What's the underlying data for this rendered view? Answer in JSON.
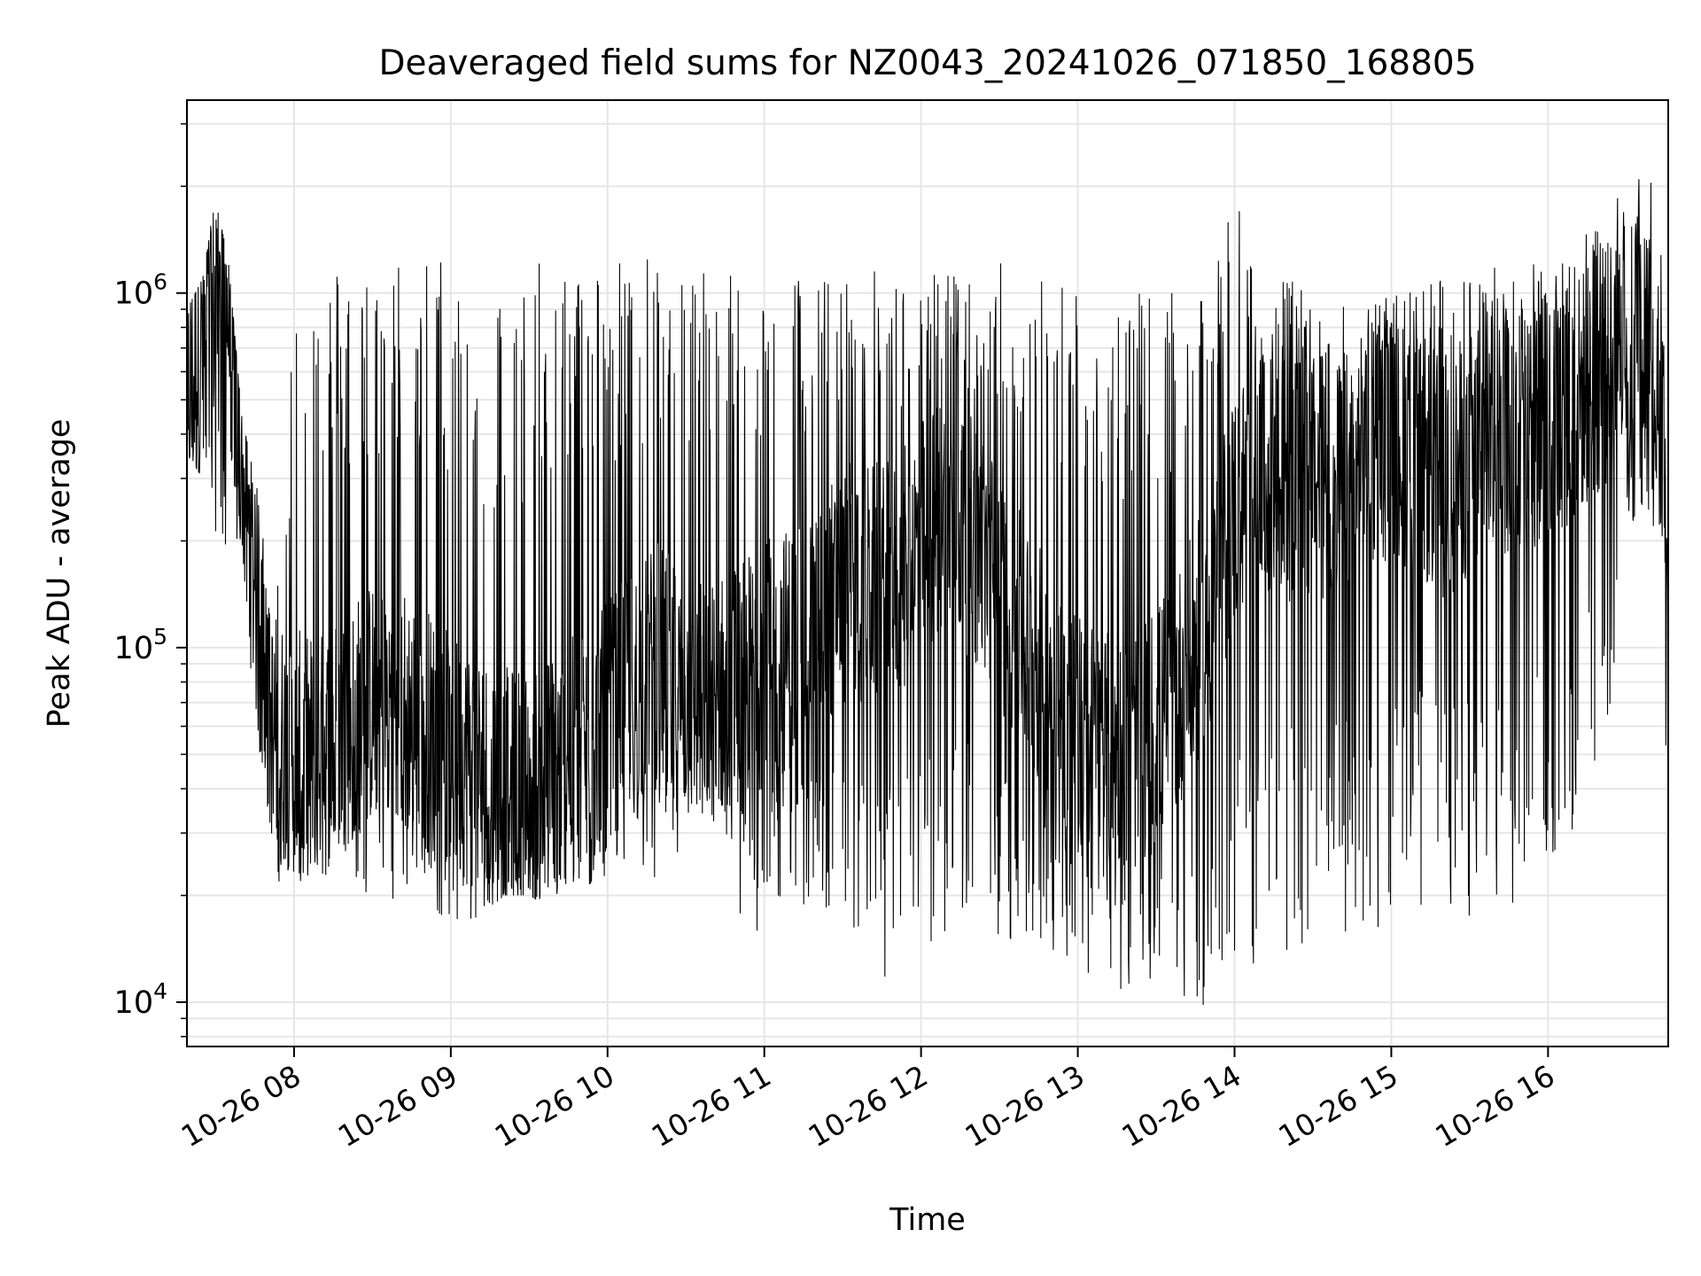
{
  "chart_data": {
    "type": "line",
    "title": "Deaveraged field sums for NZ0043_20241026_071850_168805",
    "xlabel": "Time",
    "ylabel": "Peak ADU - average",
    "yscale": "log",
    "ylim": [
      7500,
      3500000
    ],
    "xlim": [
      "2024-10-26 07:19",
      "2024-10-26 16:46"
    ],
    "grid": true,
    "line_color": "#000000",
    "x_ticks": [
      {
        "label": "10-26 08",
        "value": "2024-10-26 08:00"
      },
      {
        "label": "10-26 09",
        "value": "2024-10-26 09:00"
      },
      {
        "label": "10-26 10",
        "value": "2024-10-26 10:00"
      },
      {
        "label": "10-26 11",
        "value": "2024-10-26 11:00"
      },
      {
        "label": "10-26 12",
        "value": "2024-10-26 12:00"
      },
      {
        "label": "10-26 13",
        "value": "2024-10-26 13:00"
      },
      {
        "label": "10-26 14",
        "value": "2024-10-26 14:00"
      },
      {
        "label": "10-26 15",
        "value": "2024-10-26 15:00"
      },
      {
        "label": "10-26 16",
        "value": "2024-10-26 16:00"
      }
    ],
    "y_ticks": [
      {
        "base": "10",
        "exp": "4",
        "value": 10000
      },
      {
        "base": "10",
        "exp": "5",
        "value": 100000
      },
      {
        "base": "10",
        "exp": "6",
        "value": 1000000
      }
    ],
    "series": [
      {
        "x": [
          "2024-10-26 07:19",
          "2024-10-26 07:25",
          "2024-10-26 07:30",
          "2024-10-26 07:35",
          "2024-10-26 07:40",
          "2024-10-26 07:45",
          "2024-10-26 07:50",
          "2024-10-26 07:55",
          "2024-10-26 08:00",
          "2024-10-26 08:10",
          "2024-10-26 08:20",
          "2024-10-26 08:30",
          "2024-10-26 08:40",
          "2024-10-26 08:50",
          "2024-10-26 09:00",
          "2024-10-26 09:10",
          "2024-10-26 09:20",
          "2024-10-26 09:30",
          "2024-10-26 09:40",
          "2024-10-26 09:50",
          "2024-10-26 10:00",
          "2024-10-26 10:10",
          "2024-10-26 10:20",
          "2024-10-26 10:30",
          "2024-10-26 10:40",
          "2024-10-26 10:50",
          "2024-10-26 11:00",
          "2024-10-26 11:10",
          "2024-10-26 11:20",
          "2024-10-26 11:30",
          "2024-10-26 11:40",
          "2024-10-26 11:50",
          "2024-10-26 12:00",
          "2024-10-26 12:10",
          "2024-10-26 12:20",
          "2024-10-26 12:30",
          "2024-10-26 12:40",
          "2024-10-26 12:50",
          "2024-10-26 13:00",
          "2024-10-26 13:10",
          "2024-10-26 13:20",
          "2024-10-26 13:30",
          "2024-10-26 13:40",
          "2024-10-26 13:50",
          "2024-10-26 14:00",
          "2024-10-26 14:10",
          "2024-10-26 14:20",
          "2024-10-26 14:30",
          "2024-10-26 14:40",
          "2024-10-26 14:50",
          "2024-10-26 15:00",
          "2024-10-26 15:10",
          "2024-10-26 15:20",
          "2024-10-26 15:30",
          "2024-10-26 15:40",
          "2024-10-26 15:50",
          "2024-10-26 16:00",
          "2024-10-26 16:10",
          "2024-10-26 16:20",
          "2024-10-26 16:30",
          "2024-10-26 16:38",
          "2024-10-26 16:44",
          "2024-10-26 16:46"
        ],
        "baseline": [
          500000,
          700000,
          900000,
          900000,
          300000,
          150000,
          60000,
          55000,
          50000,
          50000,
          60000,
          70000,
          70000,
          60000,
          50000,
          45000,
          40000,
          40000,
          45000,
          50000,
          60000,
          80000,
          90000,
          70000,
          70000,
          80000,
          90000,
          100000,
          120000,
          150000,
          150000,
          150000,
          200000,
          250000,
          200000,
          150000,
          100000,
          80000,
          60000,
          50000,
          50000,
          60000,
          80000,
          120000,
          250000,
          300000,
          300000,
          300000,
          300000,
          350000,
          400000,
          350000,
          300000,
          350000,
          400000,
          400000,
          450000,
          500000,
          600000,
          700000,
          900000,
          400000,
          80000
        ],
        "max": [
          900000,
          1100000,
          1900000,
          1200000,
          450000,
          300000,
          200000,
          150000,
          1250000,
          1250000,
          1250000,
          1200000,
          1300000,
          1350000,
          1300000,
          1000000,
          1100000,
          1200000,
          1300000,
          1300000,
          1300000,
          1250000,
          1300000,
          1250000,
          1300000,
          1200000,
          1200000,
          1150000,
          1150000,
          1100000,
          1200000,
          1100000,
          1050000,
          1250000,
          1150000,
          1250000,
          1200000,
          1200000,
          1100000,
          1050000,
          1000000,
          1000000,
          1000000,
          950000,
          2000000,
          1200000,
          1100000,
          1000000,
          950000,
          950000,
          1000000,
          1050000,
          1100000,
          1150000,
          1200000,
          1250000,
          1250000,
          1400000,
          1700000,
          2000000,
          2400000,
          1500000,
          200000
        ],
        "min": [
          350000,
          300000,
          160000,
          180000,
          200000,
          60000,
          35000,
          20000,
          20000,
          22000,
          25000,
          18000,
          20000,
          20000,
          16000,
          15000,
          20000,
          20000,
          18000,
          20000,
          22000,
          25000,
          20000,
          25000,
          30000,
          15000,
          15000,
          20000,
          16000,
          15000,
          13000,
          11000,
          14000,
          13000,
          14000,
          15000,
          14000,
          14000,
          12000,
          11500,
          10500,
          11000,
          10000,
          9700,
          11000,
          13000,
          13000,
          14000,
          13000,
          15000,
          17000,
          17000,
          17000,
          16000,
          18000,
          18000,
          20000,
          25000,
          40000,
          150000,
          200000,
          180000,
          18000
        ]
      }
    ]
  }
}
